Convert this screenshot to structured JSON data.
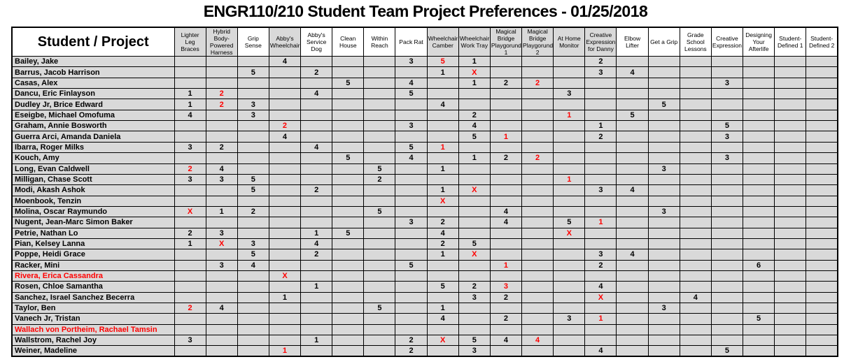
{
  "title": "ENGR110/210 Student Team Project Preferences - 01/25/2018",
  "colors": {
    "highlight_red": "#FF0000",
    "cell_gray": "#D9D9D9",
    "border_black": "#000000",
    "header_white": "#FFFFFF"
  },
  "table": {
    "corner_header": "Student / Project",
    "columns": [
      {
        "label": "Lighter Leg Braces",
        "shaded": true
      },
      {
        "label": "Hybrid Body-Powered Harness",
        "shaded": true
      },
      {
        "label": "Grip Sense",
        "shaded": false
      },
      {
        "label": "Abby's Wheelchair",
        "shaded": true
      },
      {
        "label": "Abby's Service Dog",
        "shaded": false
      },
      {
        "label": "Clean House",
        "shaded": false
      },
      {
        "label": "Within Reach",
        "shaded": false
      },
      {
        "label": "Pack Rat",
        "shaded": false
      },
      {
        "label": "Wheelchair Camber",
        "shaded": true
      },
      {
        "label": "Wheelchair Work Tray",
        "shaded": true
      },
      {
        "label": "Magical Bridge Playgorund 1",
        "shaded": true
      },
      {
        "label": "Magical Bridge Playgorund 2",
        "shaded": true
      },
      {
        "label": "At Home Monitor",
        "shaded": true
      },
      {
        "label": "Creative Expression for Danny",
        "shaded": true
      },
      {
        "label": "Elbow Lifter",
        "shaded": false
      },
      {
        "label": "Get a Grip",
        "shaded": false
      },
      {
        "label": "Grade School Lessons",
        "shaded": false
      },
      {
        "label": "Creative Expression",
        "shaded": false
      },
      {
        "label": "Designing Your Afterlife",
        "shaded": false
      },
      {
        "label": "Student-Defined 1",
        "shaded": false
      },
      {
        "label": "Student-Defined 2",
        "shaded": false
      }
    ],
    "rows": [
      {
        "name": "Bailey, Jake",
        "name_red": false,
        "cells": [
          [
            3,
            "4",
            0
          ],
          [
            7,
            "3",
            0
          ],
          [
            8,
            "5",
            1
          ],
          [
            9,
            "1",
            0
          ],
          [
            13,
            "2",
            0
          ]
        ]
      },
      {
        "name": "Barrus, Jacob Harrison",
        "name_red": false,
        "cells": [
          [
            2,
            "5",
            0
          ],
          [
            4,
            "2",
            0
          ],
          [
            8,
            "1",
            0
          ],
          [
            9,
            "X",
            1
          ],
          [
            13,
            "3",
            0
          ],
          [
            14,
            "4",
            0
          ]
        ]
      },
      {
        "name": "Casas, Alex",
        "name_red": false,
        "cells": [
          [
            5,
            "5",
            0
          ],
          [
            7,
            "4",
            0
          ],
          [
            9,
            "1",
            0
          ],
          [
            10,
            "2",
            0
          ],
          [
            11,
            "2",
            1
          ],
          [
            17,
            "3",
            0
          ]
        ]
      },
      {
        "name": "Dancu, Eric Finlayson",
        "name_red": false,
        "cells": [
          [
            0,
            "1",
            0
          ],
          [
            1,
            "2",
            1
          ],
          [
            4,
            "4",
            0
          ],
          [
            7,
            "5",
            0
          ],
          [
            12,
            "3",
            0
          ]
        ]
      },
      {
        "name": "Dudley Jr, Brice Edward",
        "name_red": false,
        "cells": [
          [
            0,
            "1",
            0
          ],
          [
            1,
            "2",
            1
          ],
          [
            2,
            "3",
            0
          ],
          [
            8,
            "4",
            0
          ],
          [
            15,
            "5",
            0
          ]
        ]
      },
      {
        "name": "Eseigbe, Michael Omofuma",
        "name_red": false,
        "cells": [
          [
            0,
            "4",
            0
          ],
          [
            2,
            "3",
            0
          ],
          [
            9,
            "2",
            0
          ],
          [
            12,
            "1",
            1
          ],
          [
            14,
            "5",
            0
          ]
        ]
      },
      {
        "name": "Graham, Annie Bosworth",
        "name_red": false,
        "cells": [
          [
            3,
            "2",
            1
          ],
          [
            7,
            "3",
            0
          ],
          [
            9,
            "4",
            0
          ],
          [
            13,
            "1",
            0
          ],
          [
            17,
            "5",
            0
          ]
        ]
      },
      {
        "name": "Guerra Arci, Amanda Daniela",
        "name_red": false,
        "cells": [
          [
            3,
            "4",
            0
          ],
          [
            9,
            "5",
            0
          ],
          [
            10,
            "1",
            1
          ],
          [
            13,
            "2",
            0
          ],
          [
            17,
            "3",
            0
          ]
        ]
      },
      {
        "name": "Ibarra, Roger Milks",
        "name_red": false,
        "cells": [
          [
            0,
            "3",
            0
          ],
          [
            1,
            "2",
            0
          ],
          [
            4,
            "4",
            0
          ],
          [
            7,
            "5",
            0
          ],
          [
            8,
            "1",
            1
          ]
        ]
      },
      {
        "name": "Kouch, Amy",
        "name_red": false,
        "cells": [
          [
            5,
            "5",
            0
          ],
          [
            7,
            "4",
            0
          ],
          [
            9,
            "1",
            0
          ],
          [
            10,
            "2",
            0
          ],
          [
            11,
            "2",
            1
          ],
          [
            17,
            "3",
            0
          ]
        ]
      },
      {
        "name": "Long, Evan Caldwell",
        "name_red": false,
        "cells": [
          [
            0,
            "2",
            1
          ],
          [
            1,
            "4",
            0
          ],
          [
            6,
            "5",
            0
          ],
          [
            8,
            "1",
            0
          ],
          [
            15,
            "3",
            0
          ]
        ]
      },
      {
        "name": "Milligan, Chase Scott",
        "name_red": false,
        "cells": [
          [
            0,
            "3",
            0
          ],
          [
            1,
            "3",
            0
          ],
          [
            2,
            "5",
            0
          ],
          [
            6,
            "2",
            0
          ],
          [
            12,
            "1",
            1
          ]
        ]
      },
      {
        "name": "Modi, Akash Ashok",
        "name_red": false,
        "cells": [
          [
            2,
            "5",
            0
          ],
          [
            4,
            "2",
            0
          ],
          [
            8,
            "1",
            0
          ],
          [
            9,
            "X",
            1
          ],
          [
            13,
            "3",
            0
          ],
          [
            14,
            "4",
            0
          ]
        ]
      },
      {
        "name": "Moenbook, Tenzin",
        "name_red": false,
        "cells": [
          [
            8,
            "X",
            1
          ]
        ]
      },
      {
        "name": "Molina, Oscar Raymundo",
        "name_red": false,
        "cells": [
          [
            0,
            "X",
            1
          ],
          [
            1,
            "1",
            0
          ],
          [
            2,
            "2",
            0
          ],
          [
            6,
            "5",
            0
          ],
          [
            10,
            "4",
            0
          ],
          [
            15,
            "3",
            0
          ]
        ]
      },
      {
        "name": "Nugent, Jean-Marc Simon Baker",
        "name_red": false,
        "cells": [
          [
            7,
            "3",
            0
          ],
          [
            8,
            "2",
            0
          ],
          [
            10,
            "4",
            0
          ],
          [
            12,
            "5",
            0
          ],
          [
            13,
            "1",
            1
          ]
        ]
      },
      {
        "name": "Petrie, Nathan Lo",
        "name_red": false,
        "cells": [
          [
            0,
            "2",
            0
          ],
          [
            1,
            "3",
            0
          ],
          [
            4,
            "1",
            0
          ],
          [
            5,
            "5",
            0
          ],
          [
            8,
            "4",
            0
          ],
          [
            12,
            "X",
            1
          ]
        ]
      },
      {
        "name": "Pian, Kelsey Lanna",
        "name_red": false,
        "cells": [
          [
            0,
            "1",
            0
          ],
          [
            1,
            "X",
            1
          ],
          [
            2,
            "3",
            0
          ],
          [
            4,
            "4",
            0
          ],
          [
            8,
            "2",
            0
          ],
          [
            9,
            "5",
            0
          ]
        ]
      },
      {
        "name": "Poppe, Heidi Grace",
        "name_red": false,
        "cells": [
          [
            2,
            "5",
            0
          ],
          [
            4,
            "2",
            0
          ],
          [
            8,
            "1",
            0
          ],
          [
            9,
            "X",
            1
          ],
          [
            13,
            "3",
            0
          ],
          [
            14,
            "4",
            0
          ]
        ]
      },
      {
        "name": "Racker, Mini",
        "name_red": false,
        "cells": [
          [
            1,
            "3",
            0
          ],
          [
            2,
            "4",
            0
          ],
          [
            7,
            "5",
            0
          ],
          [
            10,
            "1",
            1
          ],
          [
            13,
            "2",
            0
          ],
          [
            18,
            "6",
            0
          ]
        ]
      },
      {
        "name": "Rivera, Erica Cassandra",
        "name_red": true,
        "cells": [
          [
            3,
            "X",
            1
          ]
        ]
      },
      {
        "name": "Rosen, Chloe Samantha",
        "name_red": false,
        "cells": [
          [
            4,
            "1",
            0
          ],
          [
            8,
            "5",
            0
          ],
          [
            9,
            "2",
            0
          ],
          [
            10,
            "3",
            1
          ],
          [
            13,
            "4",
            0
          ]
        ]
      },
      {
        "name": "Sanchez, Israel Sanchez Becerra",
        "name_red": false,
        "cells": [
          [
            3,
            "1",
            0
          ],
          [
            9,
            "3",
            0
          ],
          [
            10,
            "2",
            0
          ],
          [
            13,
            "X",
            1
          ],
          [
            16,
            "4",
            0
          ]
        ]
      },
      {
        "name": "Taylor, Ben",
        "name_red": false,
        "cells": [
          [
            0,
            "2",
            1
          ],
          [
            1,
            "4",
            0
          ],
          [
            6,
            "5",
            0
          ],
          [
            8,
            "1",
            0
          ],
          [
            15,
            "3",
            0
          ]
        ]
      },
      {
        "name": "Vanech Jr, Tristan",
        "name_red": false,
        "cells": [
          [
            8,
            "4",
            0
          ],
          [
            10,
            "2",
            0
          ],
          [
            12,
            "3",
            0
          ],
          [
            13,
            "1",
            1
          ],
          [
            18,
            "5",
            0
          ]
        ]
      },
      {
        "name": "Wallach von Portheim, Rachael Tamsin",
        "name_red": true,
        "cells": []
      },
      {
        "name": "Wallstrom, Rachel Joy",
        "name_red": false,
        "cells": [
          [
            0,
            "3",
            0
          ],
          [
            4,
            "1",
            0
          ],
          [
            7,
            "2",
            0
          ],
          [
            8,
            "X",
            1
          ],
          [
            9,
            "5",
            0
          ],
          [
            10,
            "4",
            0
          ],
          [
            11,
            "4",
            1
          ]
        ]
      },
      {
        "name": "Weiner, Madeline",
        "name_red": false,
        "cells": [
          [
            3,
            "1",
            1
          ],
          [
            7,
            "2",
            0
          ],
          [
            9,
            "3",
            0
          ],
          [
            13,
            "4",
            0
          ],
          [
            17,
            "5",
            0
          ]
        ]
      }
    ]
  }
}
